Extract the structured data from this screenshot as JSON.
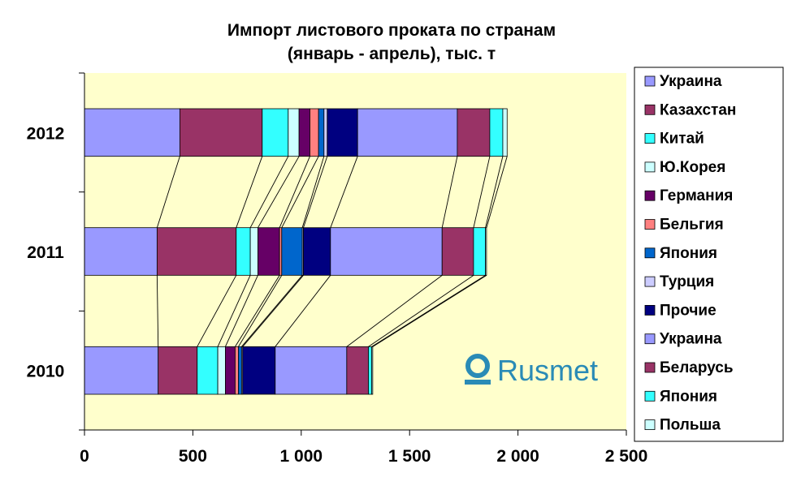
{
  "chart_data": {
    "type": "bar",
    "orientation": "horizontal",
    "stacked": true,
    "title_lines": [
      "Импорт листового проката по странам",
      "(январь - апрель), тыс. т"
    ],
    "categories": [
      "2012",
      "2011",
      "2010"
    ],
    "xlim": [
      0,
      2500
    ],
    "x_ticks": [
      "0",
      "500",
      "1 000",
      "1 500",
      "2 000",
      "2 500"
    ],
    "legend_position": "right",
    "series_lines": true,
    "series": [
      {
        "name": "Украина",
        "color": "#9999ff",
        "values": [
          440,
          335,
          340
        ]
      },
      {
        "name": "Казахстан",
        "color": "#993366",
        "values": [
          380,
          365,
          180
        ]
      },
      {
        "name": "Китай",
        "color": "#33ffff",
        "values": [
          120,
          65,
          95
        ]
      },
      {
        "name": "Ю.Корея",
        "color": "#ccffff",
        "values": [
          50,
          35,
          35
        ]
      },
      {
        "name": "Германия",
        "color": "#660066",
        "values": [
          50,
          100,
          45
        ]
      },
      {
        "name": "Бельгия",
        "color": "#ff8080",
        "values": [
          40,
          10,
          15
        ]
      },
      {
        "name": "Япония",
        "color": "#0066cc",
        "values": [
          25,
          95,
          15
        ]
      },
      {
        "name": "Турция",
        "color": "#ccccff",
        "values": [
          15,
          5,
          5
        ]
      },
      {
        "name": "Прочие",
        "color": "#000080",
        "values": [
          140,
          125,
          150
        ]
      },
      {
        "name": "Украина",
        "color": "#9999ff",
        "values": [
          460,
          515,
          330
        ]
      },
      {
        "name": "Беларусь",
        "color": "#993366",
        "values": [
          150,
          145,
          100
        ]
      },
      {
        "name": "Япония",
        "color": "#33ffff",
        "values": [
          60,
          55,
          15
        ]
      },
      {
        "name": "Польша",
        "color": "#ccffff",
        "values": [
          20,
          5,
          5
        ]
      }
    ]
  },
  "watermark": {
    "text": "Rusmet"
  }
}
